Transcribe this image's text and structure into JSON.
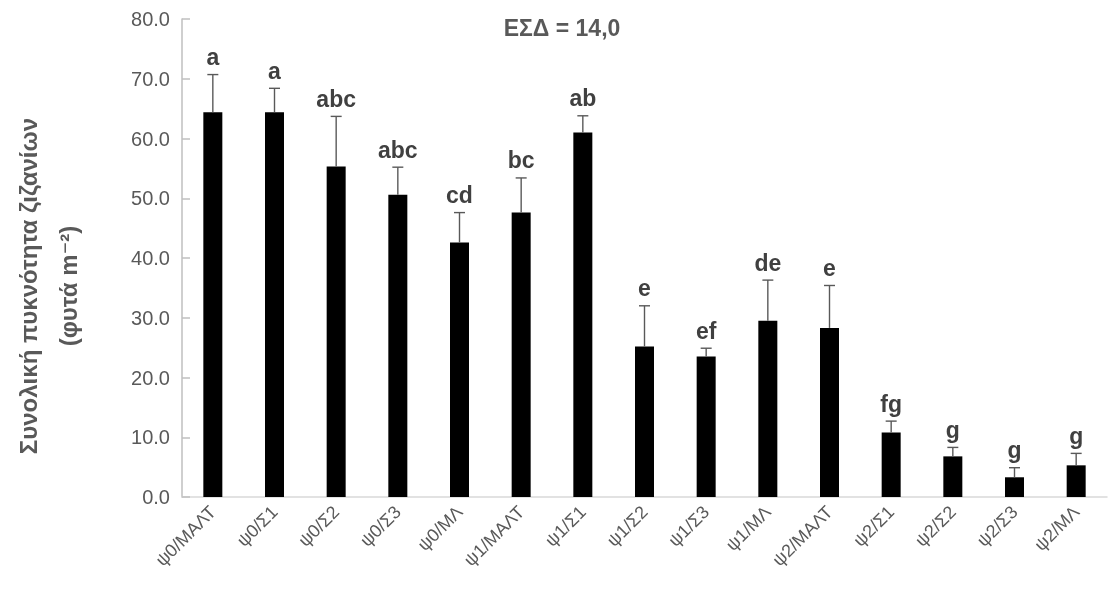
{
  "chart_data": {
    "type": "bar",
    "ylabel": "Συνολική πυκνότητα ζιζανίων (φυτά m⁻²)",
    "categories": [
      "ψ0/ΜΑΛΤ",
      "ψ0/Σ1",
      "ψ0/Σ2",
      "ψ0/Σ3",
      "ψ0/ΜΛ",
      "ψ1/ΜΑΛΤ",
      "ψ1/Σ1",
      "ψ1/Σ2",
      "ψ1/Σ3",
      "ψ1/ΜΛ",
      "ψ2/ΜΑΛΤ",
      "ψ2/Σ1",
      "ψ2/Σ2",
      "ψ2/Σ3",
      "ψ2/ΜΛ"
    ],
    "values": [
      64.4,
      64.4,
      55.3,
      50.6,
      42.6,
      47.6,
      61.0,
      25.2,
      23.5,
      29.5,
      28.3,
      10.8,
      6.8,
      3.3,
      5.3
    ],
    "errors": [
      [
        64.4,
        70.7
      ],
      [
        64.4,
        68.4
      ],
      [
        55.3,
        63.7
      ],
      [
        50.6,
        55.2
      ],
      [
        42.6,
        47.6
      ],
      [
        47.6,
        53.4
      ],
      [
        61.0,
        63.8
      ],
      [
        25.2,
        32.0
      ],
      [
        23.5,
        24.9
      ],
      [
        29.5,
        36.3
      ],
      [
        28.3,
        35.4
      ],
      [
        10.8,
        12.7
      ],
      [
        6.8,
        8.3
      ],
      [
        3.3,
        4.9
      ],
      [
        5.3,
        7.3
      ]
    ],
    "color": "#000000",
    "ylim": [
      0,
      80
    ],
    "yticks": [
      {
        "value": 0,
        "label": "0.0"
      },
      {
        "value": 10,
        "label": "10.0"
      },
      {
        "value": 20,
        "label": "20.0"
      },
      {
        "value": 30,
        "label": "30.0"
      },
      {
        "value": 40,
        "label": "40.0"
      },
      {
        "value": 50,
        "label": "50.0"
      },
      {
        "value": 60,
        "label": "60.0"
      },
      {
        "value": 70,
        "label": "70.0"
      },
      {
        "value": 80,
        "label": "80.0"
      }
    ],
    "grid": false,
    "annotations": [
      "ΕΣΔ = 14,0",
      {
        "text": "a",
        "x": "ψ0/ΜΑΛΤ",
        "y": 70.7
      },
      {
        "text": "a",
        "x": "ψ0/Σ1",
        "y": 68.4
      },
      {
        "text": "abc",
        "x": "ψ0/Σ2",
        "y": 63.7
      },
      {
        "text": "abc",
        "x": "ψ0/Σ3",
        "y": 55.2
      },
      {
        "text": "cd",
        "x": "ψ0/ΜΛ",
        "y": 47.6
      },
      {
        "text": "bc",
        "x": "ψ1/ΜΑΛΤ",
        "y": 53.4
      },
      {
        "text": "ab",
        "x": "ψ1/Σ1",
        "y": 63.8
      },
      {
        "text": "e",
        "x": "ψ1/Σ2",
        "y": 32.0
      },
      {
        "text": "ef",
        "x": "ψ1/Σ3",
        "y": 24.9
      },
      {
        "text": "de",
        "x": "ψ1/ΜΛ",
        "y": 36.3
      },
      {
        "text": "e",
        "x": "ψ2/ΜΑΛΤ",
        "y": 35.4
      },
      {
        "text": "fg",
        "x": "ψ2/Σ1",
        "y": 12.7
      },
      {
        "text": "g",
        "x": "ψ2/Σ2",
        "y": 8.3
      },
      {
        "text": "g",
        "x": "ψ2/Σ3",
        "y": 4.9
      },
      {
        "text": "g",
        "x": "ψ2/ΜΛ",
        "y": 7.3
      }
    ]
  }
}
